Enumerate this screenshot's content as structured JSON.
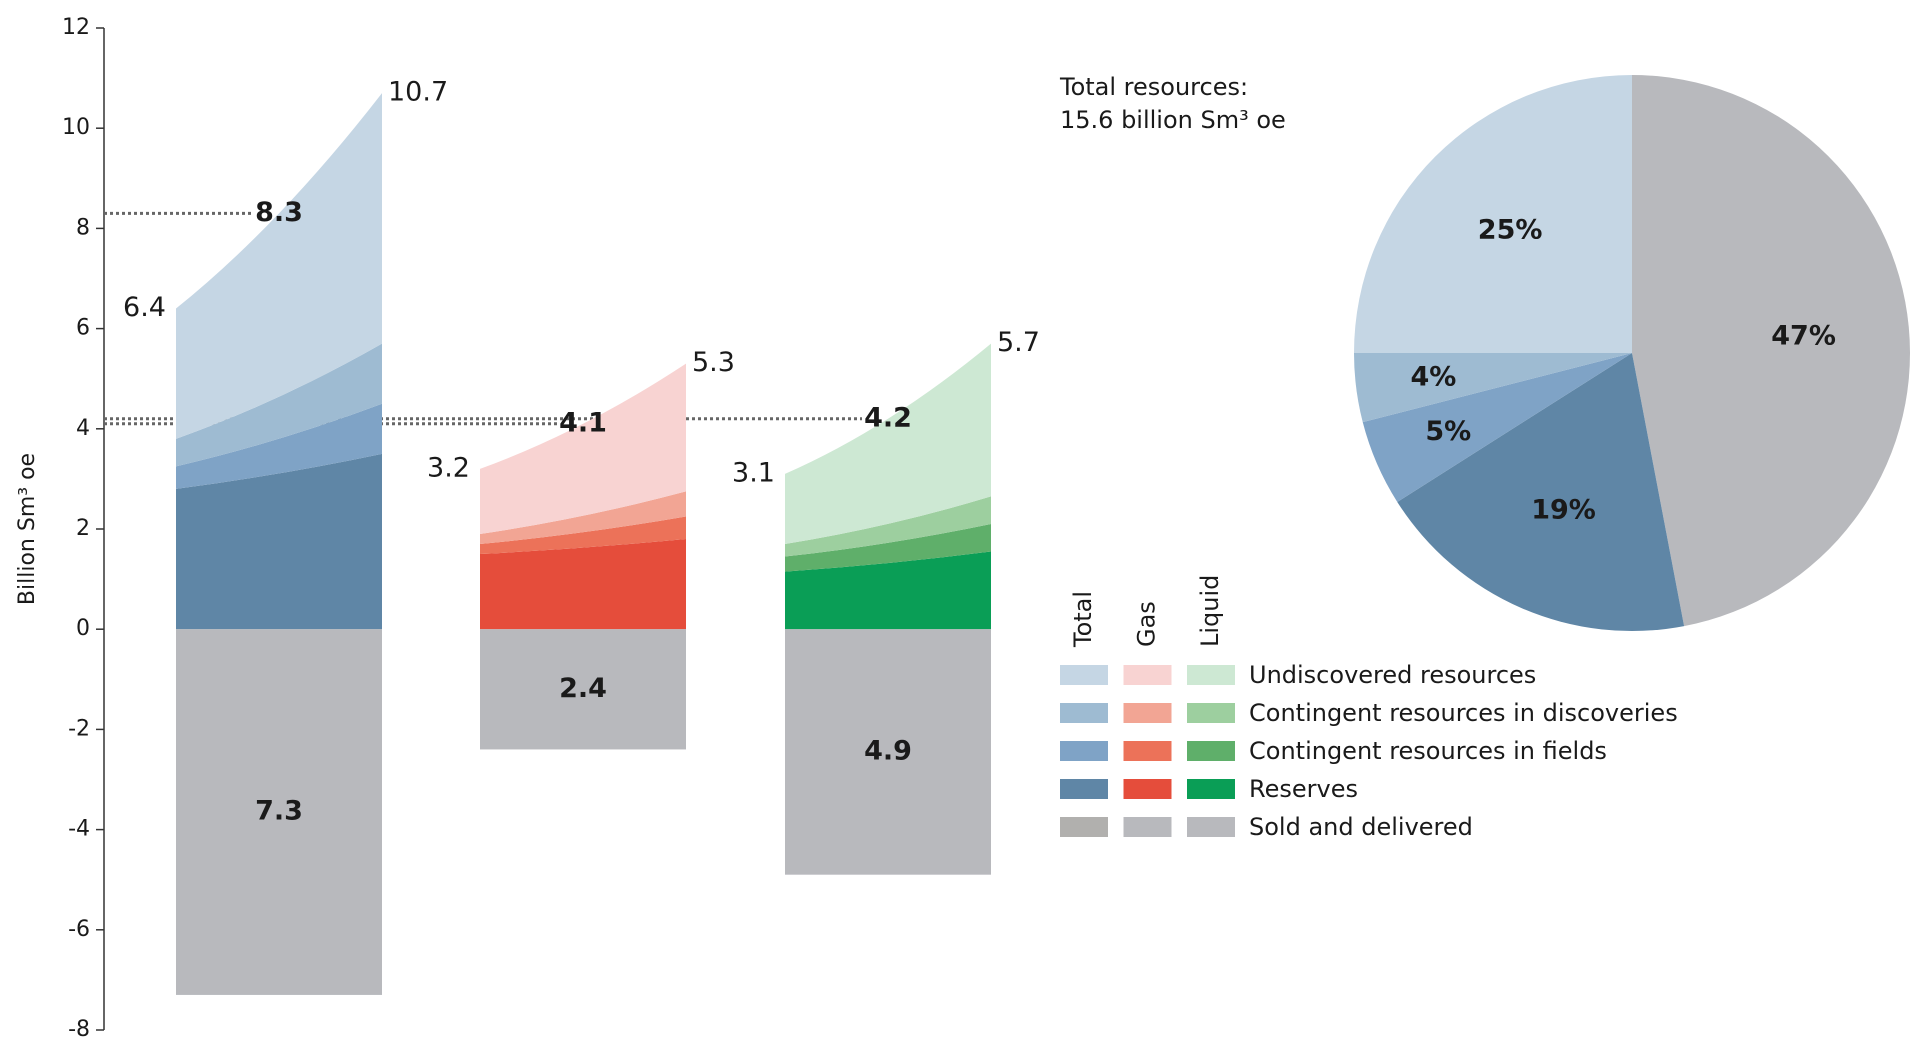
{
  "chart_data": [
    {
      "type": "stacked_area",
      "ylabel": "Billion Sm³ oe",
      "ylim": [
        -8,
        12
      ],
      "yticks": [
        -8,
        -6,
        -4,
        -2,
        0,
        2,
        4,
        6,
        8,
        10,
        12
      ],
      "layers": [
        "Undiscovered resources",
        "Contingent resources in discoveries",
        "Contingent resources in fields",
        "Reserves",
        "Sold and delivered"
      ],
      "groups": [
        {
          "name": "Total",
          "colors": [
            "#c5d6e4",
            "#9ebbd2",
            "#7fa3c6",
            "#5f86a6",
            "#b1b0ae"
          ],
          "start_values": [
            2.6,
            0.55,
            0.45,
            2.8
          ],
          "end_values": [
            5.0,
            1.2,
            1.0,
            3.5
          ],
          "start_total": 6.4,
          "mid_total": 8.3,
          "end_total": 10.7,
          "sold": -7.3,
          "sold_label": "7.3"
        },
        {
          "name": "Gas",
          "colors": [
            "#f8d3d2",
            "#f2a594",
            "#ec7259",
            "#e54d3b",
            "#b8b9bd"
          ],
          "start_values": [
            1.3,
            0.2,
            0.2,
            1.5
          ],
          "end_values": [
            2.55,
            0.5,
            0.45,
            1.8
          ],
          "start_total": 3.2,
          "mid_total": 4.1,
          "end_total": 5.3,
          "sold": -2.4,
          "sold_label": "2.4"
        },
        {
          "name": "Liquid",
          "colors": [
            "#cde8d3",
            "#9dcf9f",
            "#5faf6a",
            "#0a9e56",
            "#b8b9bd"
          ],
          "start_values": [
            1.4,
            0.25,
            0.3,
            1.15
          ],
          "end_values": [
            3.05,
            0.55,
            0.55,
            1.55
          ],
          "start_total": 3.1,
          "mid_total": 4.2,
          "end_total": 5.7,
          "sold": -4.9,
          "sold_label": "4.9"
        }
      ]
    },
    {
      "type": "pie",
      "title": [
        "Total resources:",
        "15.6 billion Sm³ oe"
      ],
      "values": [
        47,
        19,
        5,
        4,
        25
      ],
      "value_labels": [
        "47%",
        "19%",
        "5%",
        "4%",
        "25%"
      ],
      "colors": [
        "#b8b9bd",
        "#5f86a6",
        "#7fa3c6",
        "#9ebbd2",
        "#c5d6e4"
      ]
    }
  ]
}
